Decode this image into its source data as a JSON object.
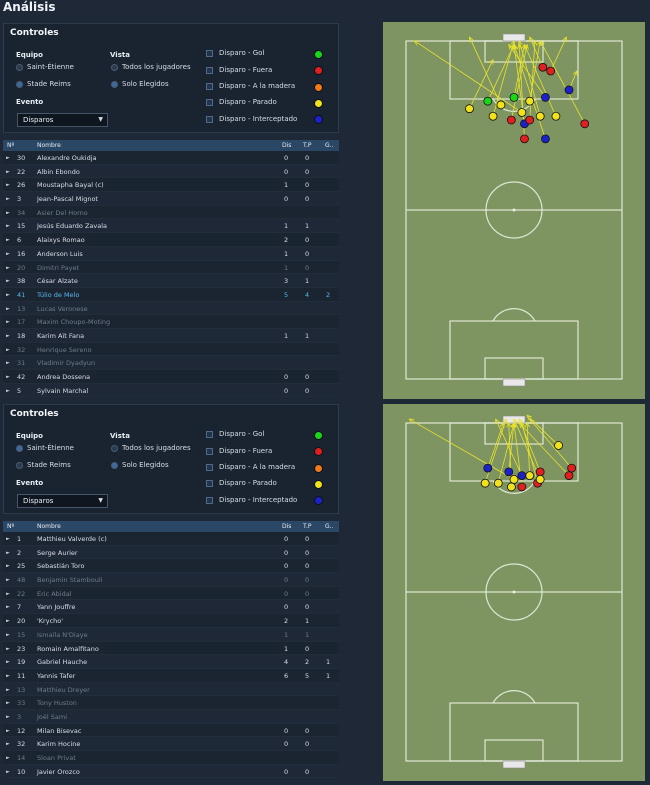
{
  "title": "Análisis",
  "panels": [
    {
      "controls_title": "Controles",
      "team_label": "Equipo",
      "team_options": [
        "Saint-Étienne",
        "Stade Reims"
      ],
      "view_label": "Vista",
      "view_options": [
        "Todos los jugadores",
        "Solo Elegidos"
      ],
      "event_label": "Evento",
      "event_value": "Disparos",
      "filters": [
        {
          "label": "Disparo - Gol",
          "color": "#19d619"
        },
        {
          "label": "Disparo - Fuera",
          "color": "#e02020"
        },
        {
          "label": "Disparo - A la madera",
          "color": "#f07a18"
        },
        {
          "label": "Disparo - Parado",
          "color": "#f1e21b"
        },
        {
          "label": "Disparo - Interceptado",
          "color": "#1d22c8"
        }
      ],
      "columns": [
        "Nº",
        "Nombre",
        "Dis",
        "T.P",
        "G.."
      ],
      "rows": [
        {
          "num": "30",
          "name": "Alexandre Oukidja",
          "dis": "0",
          "tp": "0",
          "g": "",
          "style": ""
        },
        {
          "num": "22",
          "name": "Albin Ebondo",
          "dis": "0",
          "tp": "0",
          "g": "",
          "style": ""
        },
        {
          "num": "26",
          "name": "Moustapha Bayal (c)",
          "dis": "1",
          "tp": "0",
          "g": "",
          "style": ""
        },
        {
          "num": "3",
          "name": "Jean-Pascal Mignot",
          "dis": "0",
          "tp": "0",
          "g": "",
          "style": ""
        },
        {
          "num": "34",
          "name": "Asier Del Horno",
          "dis": "",
          "tp": "",
          "g": "",
          "style": "dim"
        },
        {
          "num": "15",
          "name": "Jesús Eduardo Zavala",
          "dis": "1",
          "tp": "1",
          "g": "",
          "style": ""
        },
        {
          "num": "6",
          "name": "Alaixys Romao",
          "dis": "2",
          "tp": "0",
          "g": "",
          "style": ""
        },
        {
          "num": "16",
          "name": "Anderson Luis",
          "dis": "1",
          "tp": "0",
          "g": "",
          "style": ""
        },
        {
          "num": "20",
          "name": "Dimitri Payet",
          "dis": "1",
          "tp": "0",
          "g": "",
          "style": "dim"
        },
        {
          "num": "38",
          "name": "César Alzate",
          "dis": "3",
          "tp": "1",
          "g": "",
          "style": ""
        },
        {
          "num": "41",
          "name": "Túlio de Melo",
          "dis": "5",
          "tp": "4",
          "g": "2",
          "style": "hl"
        },
        {
          "num": "13",
          "name": "Lucas Veronese",
          "dis": "",
          "tp": "",
          "g": "",
          "style": "dim"
        },
        {
          "num": "17",
          "name": "Maxim Choupo-Moting",
          "dis": "",
          "tp": "",
          "g": "",
          "style": "dim"
        },
        {
          "num": "18",
          "name": "Karim Aït Fana",
          "dis": "1",
          "tp": "1",
          "g": "",
          "style": ""
        },
        {
          "num": "32",
          "name": "Henrique Sereno",
          "dis": "",
          "tp": "",
          "g": "",
          "style": "dim"
        },
        {
          "num": "31",
          "name": "Vladimir Dyadyun",
          "dis": "",
          "tp": "",
          "g": "",
          "style": "dim"
        },
        {
          "num": "42",
          "name": "Andrea Dossena",
          "dis": "0",
          "tp": "0",
          "g": "",
          "style": ""
        },
        {
          "num": "5",
          "name": "Sylvain Marchal",
          "dis": "0",
          "tp": "0",
          "g": "",
          "style": ""
        }
      ]
    },
    {
      "controls_title": "Controles",
      "team_label": "Equipo",
      "team_options": [
        "Saint-Étienne",
        "Stade Reims"
      ],
      "view_label": "Vista",
      "view_options": [
        "Todos los jugadores",
        "Solo Elegidos"
      ],
      "event_label": "Evento",
      "event_value": "Disparos",
      "filters": [
        {
          "label": "Disparo - Gol",
          "color": "#19d619"
        },
        {
          "label": "Disparo - Fuera",
          "color": "#e02020"
        },
        {
          "label": "Disparo - A la madera",
          "color": "#f07a18"
        },
        {
          "label": "Disparo - Parado",
          "color": "#f1e21b"
        },
        {
          "label": "Disparo - Interceptado",
          "color": "#1d22c8"
        }
      ],
      "columns": [
        "Nº",
        "Nombre",
        "Dis",
        "T.P",
        "G.."
      ],
      "rows": [
        {
          "num": "1",
          "name": "Matthieu Valverde (c)",
          "dis": "0",
          "tp": "0",
          "g": "",
          "style": ""
        },
        {
          "num": "2",
          "name": "Serge Aurier",
          "dis": "0",
          "tp": "0",
          "g": "",
          "style": ""
        },
        {
          "num": "25",
          "name": "Sebastián Toro",
          "dis": "0",
          "tp": "0",
          "g": "",
          "style": ""
        },
        {
          "num": "48",
          "name": "Benjamin Stambouli",
          "dis": "0",
          "tp": "0",
          "g": "",
          "style": "dim"
        },
        {
          "num": "22",
          "name": "Eric Abidal",
          "dis": "0",
          "tp": "0",
          "g": "",
          "style": "dim"
        },
        {
          "num": "7",
          "name": "Yann Jouffre",
          "dis": "0",
          "tp": "0",
          "g": "",
          "style": ""
        },
        {
          "num": "20",
          "name": "'Krycho'",
          "dis": "2",
          "tp": "1",
          "g": "",
          "style": ""
        },
        {
          "num": "15",
          "name": "Ismaïla N'Diaye",
          "dis": "1",
          "tp": "1",
          "g": "",
          "style": "dim"
        },
        {
          "num": "23",
          "name": "Romain Amalfitano",
          "dis": "1",
          "tp": "0",
          "g": "",
          "style": ""
        },
        {
          "num": "19",
          "name": "Gabriel Hauche",
          "dis": "4",
          "tp": "2",
          "g": "1",
          "style": ""
        },
        {
          "num": "11",
          "name": "Yannis Tafer",
          "dis": "6",
          "tp": "5",
          "g": "1",
          "style": ""
        },
        {
          "num": "13",
          "name": "Matthieu Dreyer",
          "dis": "",
          "tp": "",
          "g": "",
          "style": "dim"
        },
        {
          "num": "33",
          "name": "Tony Huston",
          "dis": "",
          "tp": "",
          "g": "",
          "style": "dim"
        },
        {
          "num": "3",
          "name": "Joël Sami",
          "dis": "",
          "tp": "",
          "g": "",
          "style": "dim"
        },
        {
          "num": "12",
          "name": "Milan Bisevac",
          "dis": "0",
          "tp": "0",
          "g": "",
          "style": ""
        },
        {
          "num": "32",
          "name": "Karim Hocine",
          "dis": "0",
          "tp": "0",
          "g": "",
          "style": ""
        },
        {
          "num": "14",
          "name": "Sloan Privat",
          "dis": "",
          "tp": "",
          "g": "",
          "style": "dim"
        },
        {
          "num": "10",
          "name": "Javier Orozco",
          "dis": "0",
          "tp": "0",
          "g": "",
          "style": ""
        }
      ]
    }
  ],
  "shot_maps": [
    {
      "shots": [
        {
          "n": "",
          "c": "#f1e21b",
          "from": [
            0.53,
            0.24
          ],
          "to": [
            0.12,
            0.05
          ]
        },
        {
          "n": "",
          "c": "#f1e21b",
          "from": [
            0.45,
            0.22
          ],
          "to": [
            0.33,
            0.04
          ]
        },
        {
          "n": "",
          "c": "#19d619",
          "from": [
            0.5,
            0.2
          ],
          "to": [
            0.54,
            0.06
          ]
        },
        {
          "n": "",
          "c": "#19d619",
          "from": [
            0.4,
            0.21
          ],
          "to": [
            0.5,
            0.06
          ]
        },
        {
          "n": "",
          "c": "#f1e21b",
          "from": [
            0.56,
            0.21
          ],
          "to": [
            0.6,
            0.05
          ]
        },
        {
          "n": "",
          "c": "#e02020",
          "from": [
            0.61,
            0.12
          ],
          "to": [
            0.56,
            0.04
          ]
        },
        {
          "n": "",
          "c": "#e02020",
          "from": [
            0.64,
            0.13
          ],
          "to": [
            0.7,
            0.04
          ]
        },
        {
          "n": "",
          "c": "#1d22c8",
          "from": [
            0.62,
            0.2
          ],
          "to": [
            0.48,
            0.06
          ]
        },
        {
          "n": "",
          "c": "#f1e21b",
          "from": [
            0.42,
            0.25
          ],
          "to": [
            0.5,
            0.05
          ]
        },
        {
          "n": "",
          "c": "#f1e21b",
          "from": [
            0.6,
            0.25
          ],
          "to": [
            0.52,
            0.05
          ]
        },
        {
          "n": "",
          "c": "#1d22c8",
          "from": [
            0.54,
            0.27
          ],
          "to": [
            0.5,
            0.06
          ]
        },
        {
          "n": "",
          "c": "#e02020",
          "from": [
            0.49,
            0.26
          ],
          "to": [
            0.55,
            0.06
          ]
        },
        {
          "n": "",
          "c": "#e02020",
          "from": [
            0.56,
            0.26
          ],
          "to": [
            0.58,
            0.05
          ]
        },
        {
          "n": "",
          "c": "#f1e21b",
          "from": [
            0.66,
            0.25
          ],
          "to": [
            0.54,
            0.06
          ]
        },
        {
          "n": "",
          "c": "#1d22c8",
          "from": [
            0.62,
            0.31
          ],
          "to": [
            0.5,
            0.06
          ]
        },
        {
          "n": "",
          "c": "#e02020",
          "from": [
            0.54,
            0.31
          ],
          "to": [
            0.52,
            0.06
          ]
        },
        {
          "n": "",
          "c": "#e02020",
          "from": [
            0.77,
            0.27
          ],
          "to": [
            0.6,
            0.05
          ]
        },
        {
          "n": "",
          "c": "#1d22c8",
          "from": [
            0.71,
            0.18
          ],
          "to": [
            0.74,
            0.13
          ]
        },
        {
          "n": "",
          "c": "#f1e21b",
          "from": [
            0.33,
            0.23
          ],
          "to": [
            0.42,
            0.1
          ]
        }
      ]
    },
    {
      "shots": [
        {
          "n": "",
          "c": "#f1e21b",
          "from": [
            0.5,
            0.2
          ],
          "to": [
            0.1,
            0.04
          ]
        },
        {
          "n": "",
          "c": "#f1e21b",
          "from": [
            0.67,
            0.11
          ],
          "to": [
            0.55,
            0.03
          ]
        },
        {
          "n": "",
          "c": "#1d22c8",
          "from": [
            0.48,
            0.18
          ],
          "to": [
            0.5,
            0.05
          ]
        },
        {
          "n": "",
          "c": "#e02020",
          "from": [
            0.6,
            0.18
          ],
          "to": [
            0.52,
            0.04
          ]
        },
        {
          "n": "",
          "c": "#e02020",
          "from": [
            0.72,
            0.17
          ],
          "to": [
            0.56,
            0.04
          ]
        },
        {
          "n": "",
          "c": "#e02020",
          "from": [
            0.71,
            0.19
          ],
          "to": [
            0.52,
            0.05
          ]
        },
        {
          "n": "",
          "c": "#f1e21b",
          "from": [
            0.44,
            0.21
          ],
          "to": [
            0.5,
            0.05
          ]
        },
        {
          "n": "",
          "c": "#f1e21b",
          "from": [
            0.56,
            0.19
          ],
          "to": [
            0.55,
            0.05
          ]
        },
        {
          "n": "",
          "c": "#1d22c8",
          "from": [
            0.53,
            0.19
          ],
          "to": [
            0.43,
            0.04
          ]
        },
        {
          "n": "",
          "c": "#e02020",
          "from": [
            0.53,
            0.22
          ],
          "to": [
            0.5,
            0.05
          ]
        },
        {
          "n": "",
          "c": "#e02020",
          "from": [
            0.59,
            0.21
          ],
          "to": [
            0.53,
            0.05
          ]
        },
        {
          "n": "",
          "c": "#f1e21b",
          "from": [
            0.49,
            0.22
          ],
          "to": [
            0.48,
            0.05
          ]
        },
        {
          "n": "",
          "c": "#f1e21b",
          "from": [
            0.39,
            0.21
          ],
          "to": [
            0.47,
            0.04
          ]
        },
        {
          "n": "",
          "c": "#1d22c8",
          "from": [
            0.4,
            0.17
          ],
          "to": [
            0.46,
            0.05
          ]
        },
        {
          "n": "",
          "c": "#f1e21b",
          "from": [
            0.6,
            0.2
          ],
          "to": [
            0.5,
            0.04
          ]
        }
      ]
    }
  ]
}
